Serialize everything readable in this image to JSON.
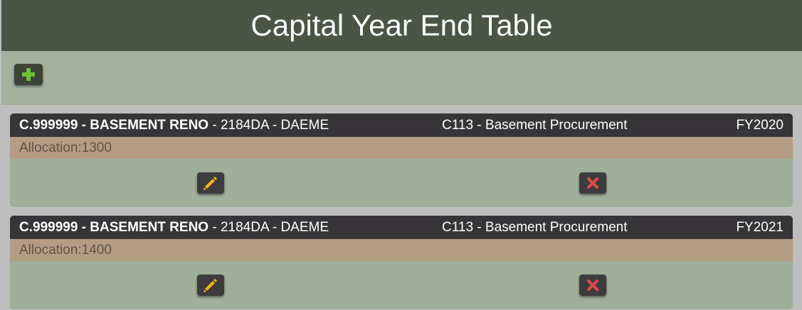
{
  "page": {
    "title": "Capital Year End Table"
  },
  "toolbar": {
    "add_icon": "plus-icon",
    "add_icon_color": "#6cc23a"
  },
  "colors": {
    "header_bg": "#4a5543",
    "card_header_bg": "#373538",
    "allocation_bg": "#b59d84",
    "edit_icon_color": "#f2b517",
    "delete_icon_color": "#e04a4a"
  },
  "records": [
    {
      "code": "C.999999 - BASEMENT RENO",
      "suffix": " - 2184DA - DAEME",
      "project": "C113 - Basement Procurement",
      "fiscal_year": "FY2020",
      "allocation": "Allocation:1300",
      "edit_icon": "pencil-icon",
      "delete_icon": "close-icon"
    },
    {
      "code": "C.999999 - BASEMENT RENO",
      "suffix": " - 2184DA - DAEME",
      "project": "C113 - Basement Procurement",
      "fiscal_year": "FY2021",
      "allocation": "Allocation:1400",
      "edit_icon": "pencil-icon",
      "delete_icon": "close-icon"
    }
  ]
}
